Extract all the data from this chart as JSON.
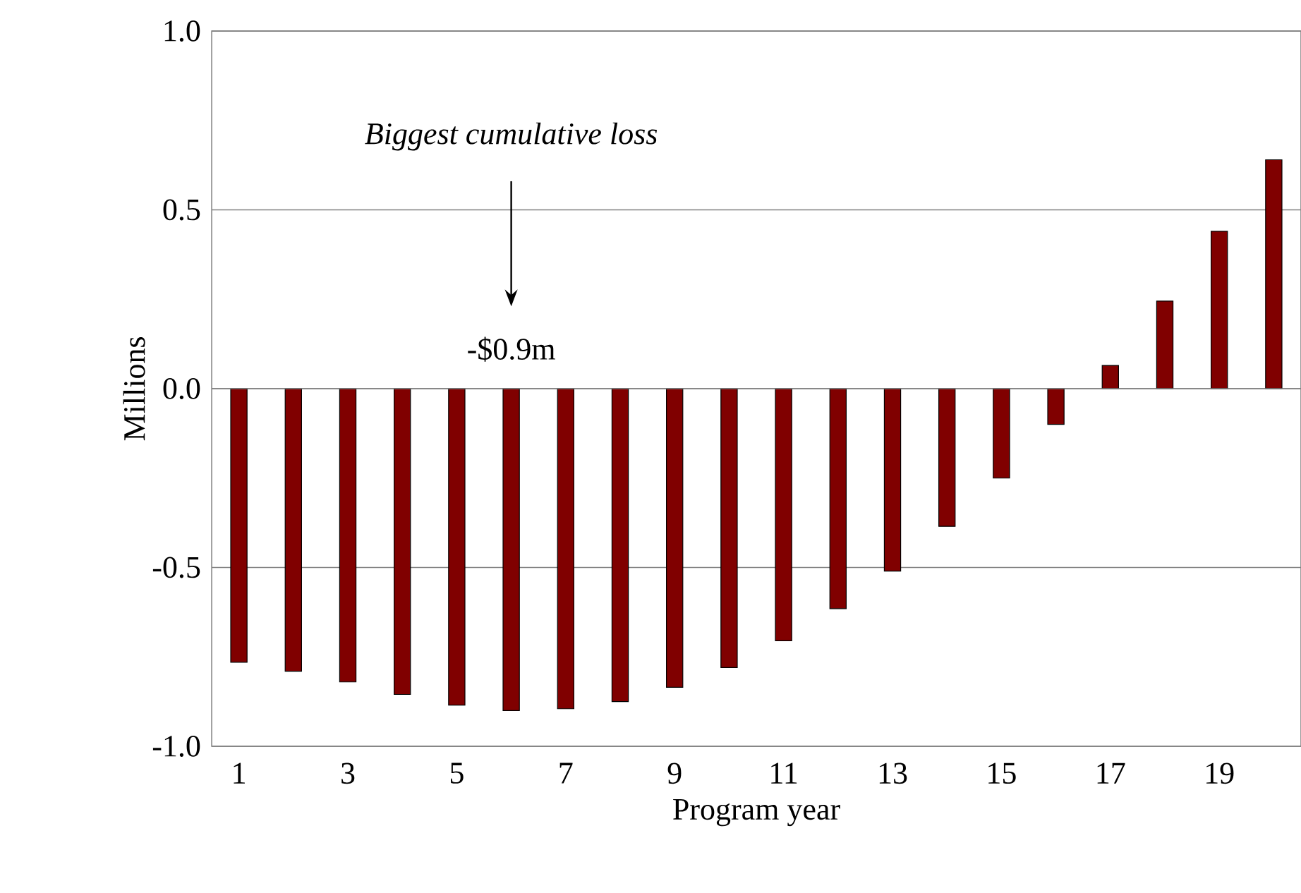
{
  "chart_data": {
    "type": "bar",
    "xlabel": "Program year",
    "ylabel": "Millions",
    "categories": [
      "1",
      null,
      "3",
      null,
      "5",
      null,
      "7",
      null,
      "9",
      null,
      "11",
      null,
      "13",
      null,
      "15",
      null,
      "17",
      null,
      "19",
      null
    ],
    "values": [
      -0.765,
      -0.79,
      -0.82,
      -0.855,
      -0.885,
      -0.9,
      -0.895,
      -0.875,
      -0.835,
      -0.78,
      -0.705,
      -0.615,
      -0.51,
      -0.385,
      -0.25,
      -0.1,
      0.065,
      0.245,
      0.44,
      0.64
    ],
    "color": "#800000",
    "ylim": [
      -1,
      1
    ],
    "yticks": [
      {
        "value": -1,
        "label": "-1.0"
      },
      {
        "value": -0.5,
        "label": "-0.5"
      },
      {
        "value": 0,
        "label": "0.0"
      },
      {
        "value": 0.5,
        "label": "0.5"
      },
      {
        "value": 1,
        "label": "1.0"
      }
    ],
    "grid": "y",
    "annotations": [
      "Biggest cumulative loss",
      "-$0.9m"
    ]
  }
}
